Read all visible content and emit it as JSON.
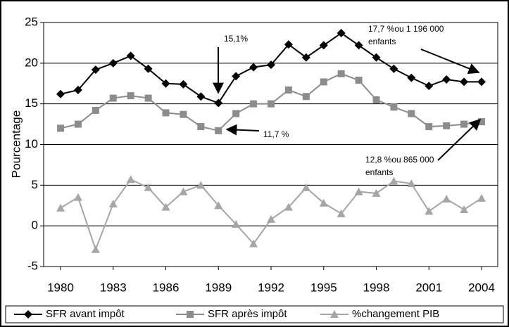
{
  "chart_data": {
    "type": "line",
    "ylabel": "Pourcentage",
    "x": [
      1980,
      1981,
      1982,
      1983,
      1984,
      1985,
      1986,
      1987,
      1988,
      1989,
      1990,
      1991,
      1992,
      1993,
      1994,
      1995,
      1996,
      1997,
      1998,
      1999,
      2000,
      2001,
      2002,
      2003,
      2004
    ],
    "series": [
      {
        "name": "SFR avant impôt",
        "color": "#000000",
        "marker": "diamond",
        "values": [
          16.2,
          16.7,
          19.2,
          20.0,
          20.9,
          19.3,
          17.5,
          17.4,
          15.9,
          15.1,
          18.4,
          19.5,
          19.8,
          22.3,
          20.7,
          22.2,
          23.7,
          22.2,
          20.7,
          19.3,
          18.2,
          17.2,
          18.0,
          17.7,
          17.7
        ]
      },
      {
        "name": "SFR après impôt",
        "color": "#8c8c8c",
        "marker": "square",
        "values": [
          12.0,
          12.5,
          14.2,
          15.7,
          16.0,
          15.7,
          13.9,
          13.7,
          12.2,
          11.7,
          13.8,
          15.0,
          15.0,
          16.7,
          15.9,
          17.7,
          18.7,
          17.9,
          15.5,
          14.6,
          13.8,
          12.2,
          12.3,
          12.5,
          12.8
        ]
      },
      {
        "name": "%changement PIB",
        "color": "#a6a6a6",
        "marker": "triangle",
        "values": [
          2.2,
          3.5,
          -2.9,
          2.7,
          5.7,
          4.7,
          2.3,
          4.2,
          5.0,
          2.5,
          0.2,
          -2.2,
          0.8,
          2.3,
          4.7,
          2.8,
          1.5,
          4.2,
          4.0,
          5.5,
          5.2,
          1.8,
          3.3,
          2.0,
          3.4
        ]
      }
    ],
    "xlim": [
      1980,
      2004
    ],
    "xticks": [
      1980,
      1983,
      1986,
      1989,
      1992,
      1995,
      1998,
      2001,
      2004
    ],
    "ylim": [
      -5,
      25
    ],
    "yticks": [
      -5,
      0,
      5,
      10,
      15,
      20,
      25
    ],
    "grid": true,
    "legend": "bottom",
    "annotations": [
      "15,1%",
      "11,7 %",
      "17,7 %ou 1 196 000",
      "enfants",
      "12,8 %ou 865 000",
      "enfants"
    ]
  }
}
